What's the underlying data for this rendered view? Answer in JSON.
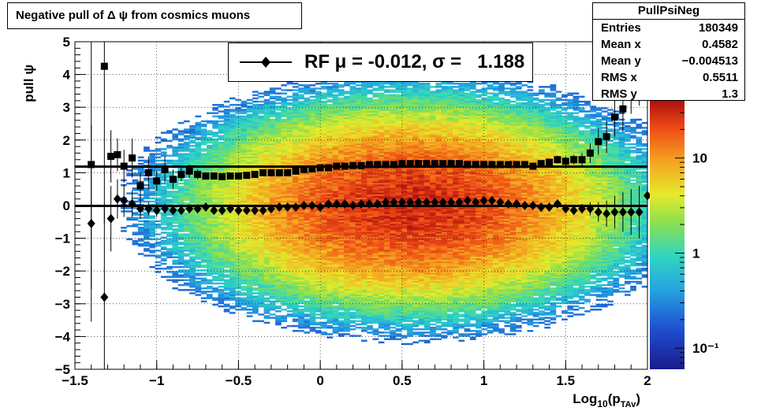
{
  "title": "Negative pull of Δ ψ from cosmics muons",
  "stats": {
    "name": "PullPsiNeg",
    "rows": [
      {
        "label": "Entries",
        "value": "180349"
      },
      {
        "label": "Mean x",
        "value": "0.4582"
      },
      {
        "label": "Mean y",
        "value": "−0.004513"
      },
      {
        "label": "RMS x",
        "value": "0.5511"
      },
      {
        "label": "RMS y",
        "value": "1.3"
      }
    ]
  },
  "legend": {
    "label": "RF μ = -0.012, σ =   1.188"
  },
  "chart_data": {
    "type": "heatmap",
    "xlabel_main": "Log",
    "xlabel_sub": "10",
    "xlabel_paren": "(p",
    "xlabel_subsub": "TAv",
    "xlabel_close": ")",
    "ylabel": "pull ψ",
    "xlim": [
      -1.5,
      2
    ],
    "ylim": [
      -5,
      5
    ],
    "x_ticks": [
      "−1.5",
      "−1",
      "−0.5",
      "0",
      "0.5",
      "1",
      "1.5",
      "2"
    ],
    "y_ticks": [
      "−5",
      "−4",
      "−3",
      "−2",
      "−1",
      "0",
      "1",
      "2",
      "3",
      "4",
      "5"
    ],
    "grid": true,
    "z_scale": "log",
    "z_ticks": [
      "10⁻¹",
      "1",
      "10"
    ],
    "density": {
      "center_x": 0.55,
      "sigma_x": 0.55,
      "sigma_y": 1.3,
      "peak": 30
    },
    "series": [
      {
        "marker": "square",
        "x": [
          -1.4,
          -1.32,
          -1.28,
          -1.24,
          -1.2,
          -1.15,
          -1.1,
          -1.05,
          -1.0,
          -0.95,
          -0.9,
          -0.85,
          -0.8,
          -0.75,
          -0.7,
          -0.65,
          -0.6,
          -0.55,
          -0.5,
          -0.45,
          -0.4,
          -0.35,
          -0.3,
          -0.25,
          -0.2,
          -0.15,
          -0.1,
          -0.05,
          0.0,
          0.05,
          0.1,
          0.15,
          0.2,
          0.25,
          0.3,
          0.35,
          0.4,
          0.45,
          0.5,
          0.55,
          0.6,
          0.65,
          0.7,
          0.75,
          0.8,
          0.85,
          0.9,
          0.95,
          1.0,
          1.05,
          1.1,
          1.15,
          1.2,
          1.25,
          1.3,
          1.35,
          1.4,
          1.45,
          1.5,
          1.55,
          1.6,
          1.65,
          1.7,
          1.75,
          1.8,
          1.85,
          1.9,
          1.95
        ],
        "y": [
          1.25,
          4.25,
          1.5,
          1.55,
          1.2,
          1.45,
          0.6,
          1.0,
          0.75,
          1.1,
          0.8,
          0.95,
          1.05,
          0.95,
          0.9,
          0.9,
          0.88,
          0.9,
          0.9,
          0.92,
          0.95,
          1.0,
          1.0,
          1.0,
          1.0,
          1.05,
          1.1,
          1.12,
          1.15,
          1.15,
          1.2,
          1.2,
          1.22,
          1.22,
          1.25,
          1.25,
          1.25,
          1.25,
          1.28,
          1.28,
          1.28,
          1.28,
          1.28,
          1.28,
          1.28,
          1.28,
          1.25,
          1.25,
          1.25,
          1.25,
          1.25,
          1.25,
          1.25,
          1.25,
          1.2,
          1.28,
          1.32,
          1.4,
          1.35,
          1.4,
          1.4,
          1.6,
          1.95,
          2.1,
          2.7,
          2.95,
          3.6,
          3.95
        ],
        "err": [
          3.8,
          4.8,
          0.8,
          0.5,
          0.5,
          0.6,
          0.4,
          0.5,
          0.3,
          0.4,
          0.3,
          0.2,
          0.2,
          0.15,
          0.1,
          0.1,
          0.1,
          0.08,
          0.08,
          0.08,
          0.06,
          0.05,
          0.05,
          0.05,
          0.05,
          0.05,
          0.04,
          0.04,
          0.04,
          0.04,
          0.03,
          0.03,
          0.03,
          0.03,
          0.03,
          0.03,
          0.03,
          0.03,
          0.03,
          0.03,
          0.03,
          0.03,
          0.03,
          0.03,
          0.03,
          0.03,
          0.03,
          0.03,
          0.04,
          0.04,
          0.04,
          0.05,
          0.05,
          0.05,
          0.05,
          0.08,
          0.1,
          0.12,
          0.15,
          0.15,
          0.2,
          0.3,
          0.4,
          0.5,
          0.6,
          0.7,
          0.8,
          0.9
        ]
      },
      {
        "marker": "diamond",
        "x": [
          -1.4,
          -1.32,
          -1.28,
          -1.24,
          -1.2,
          -1.15,
          -1.1,
          -1.05,
          -1.0,
          -0.95,
          -0.9,
          -0.85,
          -0.8,
          -0.75,
          -0.7,
          -0.65,
          -0.6,
          -0.55,
          -0.5,
          -0.45,
          -0.4,
          -0.35,
          -0.3,
          -0.25,
          -0.2,
          -0.15,
          -0.1,
          -0.05,
          0.0,
          0.05,
          0.1,
          0.15,
          0.2,
          0.25,
          0.3,
          0.35,
          0.4,
          0.45,
          0.5,
          0.55,
          0.6,
          0.65,
          0.7,
          0.75,
          0.8,
          0.85,
          0.9,
          0.95,
          1.0,
          1.05,
          1.1,
          1.15,
          1.2,
          1.25,
          1.3,
          1.35,
          1.4,
          1.45,
          1.5,
          1.55,
          1.6,
          1.65,
          1.7,
          1.75,
          1.8,
          1.85,
          1.9,
          1.95,
          2.0
        ],
        "y": [
          -0.55,
          -2.8,
          -0.4,
          0.2,
          0.15,
          0.05,
          -0.1,
          -0.1,
          -0.15,
          -0.1,
          -0.15,
          -0.15,
          -0.1,
          -0.1,
          -0.05,
          -0.15,
          -0.15,
          -0.1,
          -0.15,
          -0.15,
          -0.15,
          -0.15,
          -0.1,
          -0.05,
          -0.05,
          -0.05,
          0.0,
          0.0,
          -0.05,
          0.05,
          0.05,
          0.05,
          0.0,
          0.05,
          0.05,
          0.05,
          0.1,
          0.1,
          0.1,
          0.1,
          0.1,
          0.1,
          0.1,
          0.1,
          0.1,
          0.1,
          0.15,
          0.1,
          0.15,
          0.15,
          0.1,
          0.05,
          0.05,
          0.0,
          0.0,
          -0.05,
          -0.05,
          0.05,
          -0.1,
          -0.15,
          -0.1,
          -0.1,
          -0.2,
          -0.25,
          -0.2,
          -0.2,
          -0.2,
          -0.2,
          0.3
        ],
        "err": [
          3.0,
          2.8,
          1.0,
          0.6,
          0.5,
          0.4,
          0.3,
          0.2,
          0.2,
          0.15,
          0.1,
          0.1,
          0.08,
          0.06,
          0.06,
          0.05,
          0.05,
          0.05,
          0.04,
          0.04,
          0.04,
          0.04,
          0.03,
          0.03,
          0.03,
          0.03,
          0.03,
          0.03,
          0.03,
          0.03,
          0.03,
          0.03,
          0.03,
          0.03,
          0.03,
          0.03,
          0.03,
          0.03,
          0.03,
          0.03,
          0.03,
          0.03,
          0.03,
          0.03,
          0.03,
          0.03,
          0.03,
          0.03,
          0.03,
          0.04,
          0.04,
          0.04,
          0.04,
          0.05,
          0.05,
          0.06,
          0.08,
          0.1,
          0.1,
          0.12,
          0.15,
          0.2,
          0.3,
          0.4,
          0.5,
          0.6,
          0.7,
          0.8,
          1.5
        ]
      }
    ],
    "fit_lines": [
      {
        "x": [
          -1.5,
          2
        ],
        "y": [
          1.188,
          1.188
        ]
      },
      {
        "x": [
          -1.5,
          2
        ],
        "y": [
          -0.012,
          -0.012
        ]
      }
    ]
  }
}
